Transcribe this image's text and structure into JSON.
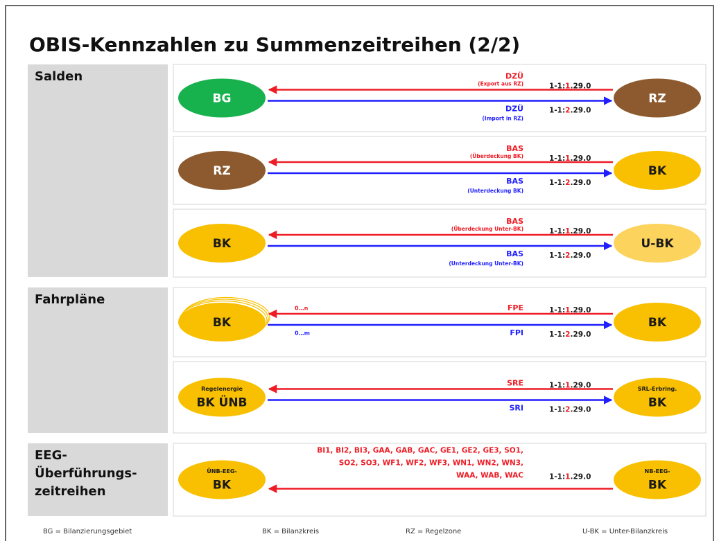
{
  "title": "OBIS-Kennzahlen zu Summenzeitreihen (2/2)",
  "sections": [
    {
      "label_lines": [
        "Salden"
      ],
      "rows": [
        {
          "left": {
            "lines": [
              "BG"
            ],
            "color": "#17b14d"
          },
          "right": {
            "lines": [
              "RZ"
            ],
            "color": "#8c5a2e"
          },
          "flows": [
            {
              "direction": "left",
              "label": "DZÜ",
              "note": "(Export aus RZ)",
              "code": {
                "prefix": "1-1:",
                "channel": "1",
                "suffix": ".29.0"
              }
            },
            {
              "direction": "right",
              "label": "DZÜ",
              "note": "(Import in RZ)",
              "code": {
                "prefix": "1-1:",
                "channel": "2",
                "suffix": ".29.0"
              }
            }
          ]
        },
        {
          "left": {
            "lines": [
              "RZ"
            ],
            "color": "#8c5a2e"
          },
          "right": {
            "lines": [
              "BK"
            ],
            "color": "#f8c000"
          },
          "flows": [
            {
              "direction": "left",
              "label": "BAS",
              "note": "(Überdeckung BK)",
              "code": {
                "prefix": "1-1:",
                "channel": "1",
                "suffix": ".29.0"
              }
            },
            {
              "direction": "right",
              "label": "BAS",
              "note": "(Unterdeckung BK)",
              "code": {
                "prefix": "1-1:",
                "channel": "2",
                "suffix": ".29.0"
              }
            }
          ]
        },
        {
          "left": {
            "lines": [
              "BK"
            ],
            "color": "#f8c000"
          },
          "right": {
            "lines": [
              "U-BK"
            ],
            "color": "#fcd35c"
          },
          "flows": [
            {
              "direction": "left",
              "label": "BAS",
              "note": "(Überdeckung Unter-BK)",
              "code": {
                "prefix": "1-1:",
                "channel": "1",
                "suffix": ".29.0"
              }
            },
            {
              "direction": "right",
              "label": "BAS",
              "note": "(Unterdeckung Unter-BK)",
              "code": {
                "prefix": "1-1:",
                "channel": "2",
                "suffix": ".29.0"
              }
            }
          ]
        }
      ]
    },
    {
      "label_lines": [
        "Fahrpläne"
      ],
      "rows": [
        {
          "left": {
            "lines": [
              "BK"
            ],
            "color": "#f8c000"
          },
          "right": {
            "lines": [
              "BK"
            ],
            "color": "#f8c000"
          },
          "flows": [
            {
              "direction": "left",
              "label": "FPE",
              "count": "0…n",
              "code": {
                "prefix": "1-1:",
                "channel": "1",
                "suffix": ".29.0"
              }
            },
            {
              "direction": "right",
              "label": "FPI",
              "count": "0…m",
              "code": {
                "prefix": "1-1:",
                "channel": "2",
                "suffix": ".29.0"
              }
            }
          ]
        },
        {
          "left": {
            "lines": [
              "Regelenergie",
              "BK ÜNB"
            ],
            "color": "#f8c000"
          },
          "right": {
            "lines": [
              "SRL-Erbring.",
              "BK"
            ],
            "color": "#f8c000"
          },
          "flows": [
            {
              "direction": "left",
              "label": "SRE",
              "code": {
                "prefix": "1-1:",
                "channel": "1",
                "suffix": ".29.0"
              }
            },
            {
              "direction": "right",
              "label": "SRI",
              "code": {
                "prefix": "1-1:",
                "channel": "2",
                "suffix": ".29.0"
              }
            }
          ]
        }
      ]
    },
    {
      "label_lines": [
        "EEG-",
        "Überführungs-",
        "zeitreihen"
      ],
      "rows": [
        {
          "left": {
            "lines": [
              "ÜNB-EEG-",
              "BK"
            ],
            "color": "#f8c000"
          },
          "right": {
            "lines": [
              "NB-EEG-",
              "BK"
            ],
            "color": "#f8c000"
          },
          "flows": [
            {
              "direction": "left",
              "label_lines": [
                "BI1, BI2, BI3, GAA, GAB, GAC, GE1, GE2, GE3, SO1,",
                "SO2, SO3, WF1, WF2, WF3, WN1, WN2, WN3,",
                "WAA, WAB, WAC"
              ],
              "code": {
                "prefix": "1-1:",
                "channel": "1",
                "suffix": ".29.0"
              }
            }
          ]
        }
      ]
    }
  ],
  "legend": [
    "BG = Bilanzierungsgebiet",
    "BK = Bilanzkreis",
    "RZ = Regelzone",
    "U-BK = Unter-Bilanzkreis"
  ]
}
